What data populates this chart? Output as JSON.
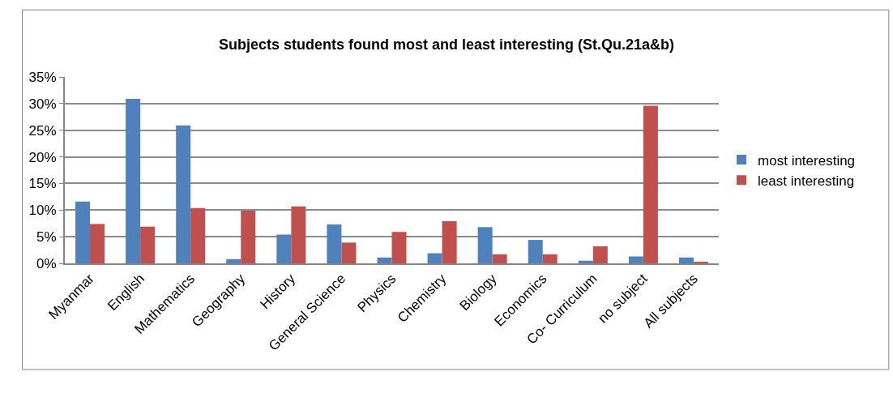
{
  "chart_data": {
    "type": "bar",
    "title": "Subjects students found most and least interesting (St.Qu.21a&b)",
    "categories": [
      "Myanmar",
      "English",
      "Mathematics",
      "Geography",
      "History",
      "General Science",
      "Physics",
      "Chemistry",
      "Biology",
      "Economics",
      "Co- Curriculum",
      "no subject",
      "All subjects"
    ],
    "series": [
      {
        "name": "most interesting",
        "color": "#4f81bd",
        "values": [
          11.6,
          30.9,
          25.9,
          0.8,
          5.4,
          7.3,
          1.1,
          1.9,
          6.8,
          4.4,
          0.5,
          1.3,
          1.1
        ]
      },
      {
        "name": "least interesting",
        "color": "#c0504d",
        "values": [
          7.4,
          6.9,
          10.4,
          9.9,
          10.7,
          3.9,
          5.9,
          7.9,
          1.7,
          1.7,
          3.2,
          29.6,
          0.3
        ]
      }
    ],
    "ylim": [
      0,
      35
    ],
    "yticks": [
      {
        "value": 0,
        "label": "0%"
      },
      {
        "value": 5,
        "label": "5%"
      },
      {
        "value": 10,
        "label": "10%"
      },
      {
        "value": 15,
        "label": "15%"
      },
      {
        "value": 20,
        "label": "20%"
      },
      {
        "value": 25,
        "label": "25%"
      },
      {
        "value": 30,
        "label": "30%"
      },
      {
        "value": 35,
        "label": "35%"
      }
    ],
    "grid": "y",
    "legend": "right"
  }
}
